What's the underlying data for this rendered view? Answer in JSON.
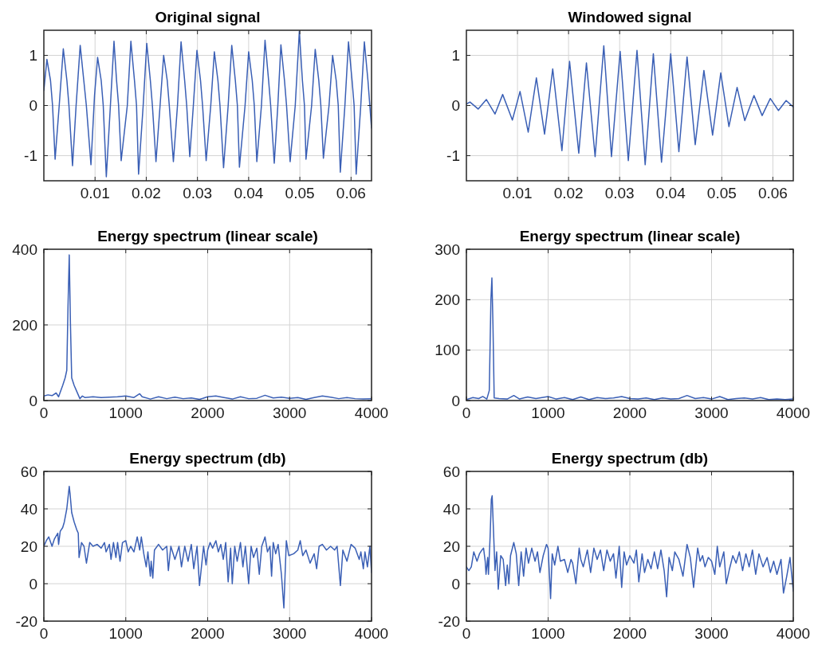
{
  "chart_data": [
    {
      "type": "line",
      "title": "Original signal",
      "color": "#3a5fb5",
      "grid": true,
      "xlim": [
        0,
        0.064
      ],
      "ylim": [
        -1.5,
        1.5
      ],
      "xticks": [
        0.01,
        0.02,
        0.03,
        0.04,
        0.05,
        0.06
      ],
      "yticks": [
        -1,
        0,
        1
      ],
      "x": [
        0,
        0.0006,
        0.0013,
        0.0017,
        0.0022,
        0.003,
        0.0038,
        0.0045,
        0.0049,
        0.0056,
        0.0063,
        0.0071,
        0.0078,
        0.0083,
        0.0092,
        0.0099,
        0.0105,
        0.0112,
        0.0116,
        0.0122,
        0.013,
        0.0137,
        0.0142,
        0.0146,
        0.0151,
        0.0163,
        0.017,
        0.0177,
        0.0181,
        0.0185,
        0.0194,
        0.0201,
        0.0208,
        0.0212,
        0.0219,
        0.0227,
        0.0234,
        0.0241,
        0.0245,
        0.0253,
        0.0261,
        0.0268,
        0.0275,
        0.0279,
        0.0285,
        0.0292,
        0.0299,
        0.0306,
        0.031,
        0.0317,
        0.0326,
        0.0333,
        0.034,
        0.0344,
        0.0351,
        0.036,
        0.0367,
        0.0374,
        0.0378,
        0.0382,
        0.0393,
        0.04,
        0.0407,
        0.0411,
        0.0416,
        0.0425,
        0.0432,
        0.0439,
        0.0443,
        0.045,
        0.0457,
        0.0463,
        0.047,
        0.0474,
        0.0481,
        0.0491,
        0.0499,
        0.0505,
        0.0509,
        0.0512,
        0.0523,
        0.053,
        0.0537,
        0.0541,
        0.0546,
        0.0557,
        0.0564,
        0.0571,
        0.0575,
        0.0579,
        0.0588,
        0.0595,
        0.0602,
        0.0606,
        0.061,
        0.0619,
        0.0626,
        0.0633,
        0.064
      ],
      "values": [
        0.3,
        0.92,
        0.5,
        0,
        -1.07,
        0,
        1.13,
        0.5,
        0,
        -1.2,
        0,
        1.2,
        0.5,
        0,
        -1.18,
        0.2,
        0.96,
        0.5,
        0,
        -1.42,
        0,
        1.28,
        0.5,
        0,
        -1.1,
        0,
        1.28,
        0.5,
        0,
        -1.37,
        0,
        1.24,
        0.5,
        0,
        -1.12,
        0,
        1.0,
        0.5,
        0,
        -1.12,
        0,
        1.27,
        0.5,
        0,
        -1.02,
        0,
        1.1,
        0.5,
        0,
        -1.1,
        0,
        1.07,
        0.5,
        0,
        -1.24,
        0,
        1.2,
        0.5,
        0,
        -1.23,
        0,
        1.07,
        0.5,
        0,
        -1.12,
        0,
        1.3,
        0.5,
        0,
        -1.15,
        0,
        1.21,
        0.5,
        0,
        -1.12,
        0,
        1.48,
        0.5,
        0,
        -1.07,
        0,
        1.12,
        0.5,
        0,
        -1.05,
        0,
        1.0,
        0.5,
        0,
        -1.33,
        0,
        1.27,
        0.5,
        0,
        -1.37,
        0,
        1.27,
        0.5,
        -0.45
      ]
    },
    {
      "type": "line",
      "title": "Windowed signal",
      "color": "#3a5fb5",
      "grid": true,
      "xlim": [
        0,
        0.064
      ],
      "ylim": [
        -1.5,
        1.5
      ],
      "xticks": [
        0.01,
        0.02,
        0.03,
        0.04,
        0.05,
        0.06
      ],
      "yticks": [
        -1,
        0,
        1
      ],
      "x": [
        0,
        0.0007,
        0.0023,
        0.0039,
        0.0056,
        0.0071,
        0.009,
        0.0105,
        0.0121,
        0.0137,
        0.0153,
        0.0169,
        0.0187,
        0.0202,
        0.022,
        0.0235,
        0.0252,
        0.0269,
        0.0284,
        0.0301,
        0.0317,
        0.0334,
        0.035,
        0.0366,
        0.0382,
        0.04,
        0.0416,
        0.0432,
        0.0448,
        0.0465,
        0.0482,
        0.0498,
        0.0514,
        0.053,
        0.0545,
        0.0563,
        0.0579,
        0.0595,
        0.0611,
        0.0626,
        0.064
      ],
      "values": [
        0.03,
        0.07,
        -0.07,
        0.12,
        -0.17,
        0.22,
        -0.29,
        0.28,
        -0.53,
        0.55,
        -0.57,
        0.73,
        -0.9,
        0.88,
        -0.95,
        0.85,
        -1.02,
        1.19,
        -1.02,
        1.08,
        -1.1,
        1.1,
        -1.18,
        1.03,
        -1.13,
        1.03,
        -0.92,
        0.97,
        -0.78,
        0.7,
        -0.59,
        0.65,
        -0.42,
        0.36,
        -0.3,
        0.2,
        -0.2,
        0.14,
        -0.1,
        0.1,
        -0.03
      ]
    },
    {
      "type": "line",
      "title": "Energy spectrum (linear scale)",
      "color": "#3a5fb5",
      "grid": true,
      "xlim": [
        0,
        4000
      ],
      "ylim": [
        0,
        400
      ],
      "xticks": [
        0,
        1000,
        2000,
        3000,
        4000
      ],
      "yticks": [
        0,
        200,
        400
      ],
      "x": [
        0,
        50,
        100,
        150,
        180,
        200,
        230,
        260,
        280,
        295,
        310,
        325,
        340,
        370,
        400,
        440,
        470,
        500,
        600,
        700,
        800,
        900,
        1000,
        1100,
        1170,
        1200,
        1300,
        1400,
        1500,
        1600,
        1700,
        1800,
        1900,
        2000,
        2100,
        2200,
        2300,
        2400,
        2500,
        2600,
        2700,
        2800,
        2900,
        3000,
        3100,
        3200,
        3300,
        3400,
        3500,
        3600,
        3700,
        3800,
        3900,
        4000
      ],
      "values": [
        12,
        15,
        13,
        20,
        10,
        22,
        40,
        60,
        80,
        250,
        385,
        200,
        60,
        40,
        25,
        5,
        12,
        8,
        10,
        8,
        9,
        10,
        12,
        8,
        18,
        10,
        4,
        10,
        5,
        9,
        5,
        7,
        3,
        10,
        12,
        8,
        4,
        10,
        5,
        6,
        14,
        7,
        9,
        6,
        8,
        3,
        8,
        12,
        9,
        5,
        8,
        5,
        4,
        5
      ]
    },
    {
      "type": "line",
      "title": "Energy spectrum (linear scale)",
      "color": "#3a5fb5",
      "grid": true,
      "xlim": [
        0,
        4000
      ],
      "ylim": [
        0,
        300
      ],
      "xticks": [
        0,
        1000,
        2000,
        3000,
        4000
      ],
      "yticks": [
        0,
        100,
        200,
        300
      ],
      "x": [
        0,
        80,
        150,
        200,
        250,
        280,
        300,
        312,
        325,
        340,
        400,
        500,
        580,
        650,
        750,
        850,
        1000,
        1100,
        1200,
        1300,
        1400,
        1500,
        1600,
        1700,
        1800,
        1900,
        2000,
        2100,
        2200,
        2300,
        2400,
        2500,
        2600,
        2700,
        2800,
        2900,
        3000,
        3100,
        3200,
        3300,
        3400,
        3500,
        3600,
        3700,
        3800,
        3900,
        4000
      ],
      "values": [
        2,
        6,
        4,
        8,
        3,
        20,
        200,
        243,
        150,
        5,
        4,
        3,
        10,
        3,
        7,
        4,
        8,
        3,
        6,
        2,
        7,
        2,
        6,
        4,
        5,
        8,
        4,
        3,
        5,
        2,
        5,
        3,
        4,
        10,
        4,
        6,
        3,
        8,
        2,
        4,
        5,
        3,
        6,
        2,
        3,
        2,
        3
      ]
    },
    {
      "type": "line",
      "title": "Energy spectrum (db)",
      "color": "#3a5fb5",
      "grid": true,
      "xlim": [
        0,
        4000
      ],
      "ylim": [
        -20,
        60
      ],
      "xticks": [
        0,
        1000,
        2000,
        3000,
        4000
      ],
      "yticks": [
        -20,
        0,
        20,
        40,
        60
      ],
      "x": [
        0,
        30,
        60,
        100,
        130,
        170,
        180,
        200,
        230,
        250,
        280,
        300,
        310,
        320,
        340,
        370,
        400,
        420,
        430,
        460,
        490,
        520,
        560,
        600,
        650,
        700,
        740,
        760,
        800,
        820,
        850,
        880,
        900,
        930,
        960,
        1000,
        1030,
        1060,
        1100,
        1140,
        1170,
        1190,
        1220,
        1250,
        1270,
        1300,
        1310,
        1330,
        1350,
        1400,
        1450,
        1500,
        1520,
        1550,
        1600,
        1650,
        1680,
        1720,
        1760,
        1800,
        1830,
        1870,
        1900,
        1950,
        1980,
        2000,
        2030,
        2060,
        2100,
        2130,
        2160,
        2190,
        2220,
        2250,
        2280,
        2300,
        2330,
        2360,
        2400,
        2430,
        2460,
        2500,
        2530,
        2560,
        2600,
        2630,
        2660,
        2700,
        2730,
        2760,
        2780,
        2800,
        2830,
        2860,
        2900,
        2930,
        2960,
        2990,
        3050,
        3100,
        3130,
        3160,
        3200,
        3250,
        3300,
        3330,
        3360,
        3400,
        3450,
        3500,
        3550,
        3580,
        3620,
        3650,
        3700,
        3750,
        3800,
        3850,
        3870,
        3900,
        3920,
        3950,
        3980,
        4000
      ],
      "values": [
        20,
        23,
        25,
        20,
        24,
        27,
        21,
        28,
        30,
        33,
        40,
        48,
        52,
        48,
        38,
        33,
        29,
        27,
        14,
        22,
        20,
        11,
        22,
        20,
        21,
        19,
        22,
        17,
        21,
        13,
        22,
        14,
        22,
        12,
        22,
        23,
        17,
        20,
        17,
        25,
        18,
        25,
        16,
        9,
        17,
        4,
        12,
        3,
        18,
        21,
        18,
        20,
        7,
        20,
        13,
        20,
        9,
        20,
        12,
        21,
        8,
        20,
        -1,
        20,
        10,
        18,
        22,
        19,
        23,
        17,
        21,
        13,
        22,
        1,
        19,
        0,
        20,
        12,
        22,
        9,
        20,
        0,
        20,
        14,
        19,
        5,
        20,
        25,
        17,
        20,
        4,
        22,
        16,
        21,
        5,
        -13,
        23,
        15,
        16,
        18,
        23,
        15,
        18,
        11,
        16,
        8,
        20,
        21,
        18,
        20,
        18,
        20,
        -1,
        18,
        12,
        21,
        19,
        13,
        17,
        8,
        17,
        9,
        20,
        6
      ]
    },
    {
      "type": "line",
      "title": "Energy spectrum (db)",
      "color": "#3a5fb5",
      "grid": true,
      "xlim": [
        0,
        4000
      ],
      "ylim": [
        -20,
        60
      ],
      "xticks": [
        0,
        1000,
        2000,
        3000,
        4000
      ],
      "yticks": [
        -20,
        0,
        20,
        40,
        60
      ],
      "x": [
        0,
        30,
        60,
        90,
        130,
        160,
        190,
        210,
        230,
        240,
        260,
        270,
        290,
        305,
        315,
        330,
        350,
        370,
        390,
        420,
        450,
        480,
        500,
        520,
        540,
        580,
        610,
        640,
        670,
        700,
        730,
        760,
        800,
        840,
        870,
        900,
        940,
        980,
        1000,
        1030,
        1050,
        1080,
        1120,
        1150,
        1200,
        1240,
        1280,
        1300,
        1340,
        1380,
        1400,
        1430,
        1480,
        1520,
        1560,
        1600,
        1640,
        1680,
        1720,
        1760,
        1800,
        1830,
        1870,
        1900,
        1930,
        1960,
        2000,
        2050,
        2080,
        2110,
        2150,
        2180,
        2220,
        2260,
        2300,
        2340,
        2380,
        2420,
        2450,
        2480,
        2520,
        2550,
        2600,
        2650,
        2700,
        2740,
        2780,
        2830,
        2860,
        2890,
        2920,
        2960,
        3000,
        3040,
        3070,
        3100,
        3150,
        3180,
        3220,
        3260,
        3300,
        3340,
        3380,
        3420,
        3460,
        3500,
        3540,
        3580,
        3630,
        3680,
        3720,
        3760,
        3800,
        3850,
        3880,
        3920,
        3960,
        4000
      ],
      "values": [
        9,
        7,
        9,
        17,
        12,
        16,
        18,
        19,
        12,
        5,
        14,
        5,
        25,
        45,
        47,
        30,
        7,
        17,
        -3,
        15,
        13,
        -1,
        10,
        0,
        15,
        22,
        16,
        -1,
        17,
        4,
        19,
        11,
        19,
        12,
        17,
        6,
        15,
        21,
        19,
        -8,
        16,
        10,
        20,
        12,
        13,
        6,
        13,
        11,
        0,
        19,
        13,
        9,
        18,
        6,
        19,
        13,
        18,
        7,
        18,
        12,
        16,
        3,
        20,
        -2,
        17,
        10,
        15,
        11,
        18,
        1,
        16,
        6,
        13,
        8,
        17,
        8,
        18,
        7,
        -7,
        14,
        7,
        17,
        13,
        4,
        21,
        14,
        -2,
        19,
        12,
        15,
        9,
        14,
        12,
        5,
        20,
        9,
        17,
        0,
        8,
        15,
        11,
        17,
        7,
        16,
        9,
        18,
        5,
        16,
        9,
        14,
        6,
        12,
        5,
        13,
        -5,
        4,
        14,
        -4
      ]
    }
  ]
}
